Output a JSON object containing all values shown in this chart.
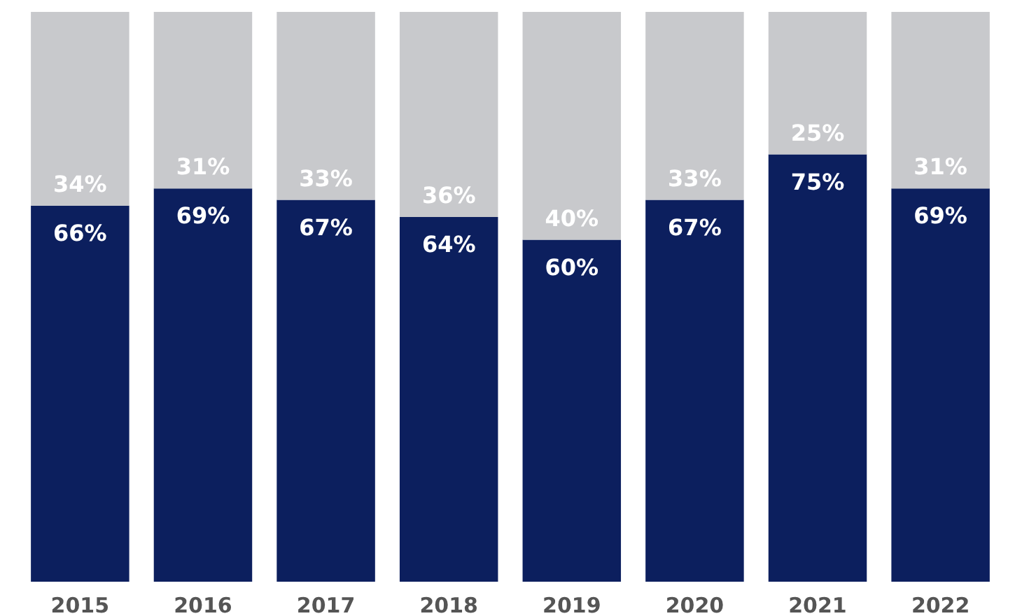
{
  "chart_data": {
    "type": "bar",
    "stacked": true,
    "categories": [
      "2015",
      "2016",
      "2017",
      "2018",
      "2019",
      "2020",
      "2021",
      "2022"
    ],
    "series": [
      {
        "color": "#0c1f5e",
        "values": [
          66,
          69,
          67,
          64,
          60,
          67,
          75,
          69
        ],
        "value_labels": [
          "66%",
          "69%",
          "67%",
          "64%",
          "60%",
          "67%",
          "75%",
          "69%"
        ]
      },
      {
        "color": "#c8c9cc",
        "values": [
          34,
          31,
          33,
          36,
          40,
          33,
          25,
          31
        ],
        "value_labels": [
          "34%",
          "31%",
          "33%",
          "36%",
          "40%",
          "33%",
          "25%",
          "31%"
        ]
      }
    ],
    "tick_labels": "x",
    "grid": false
  }
}
